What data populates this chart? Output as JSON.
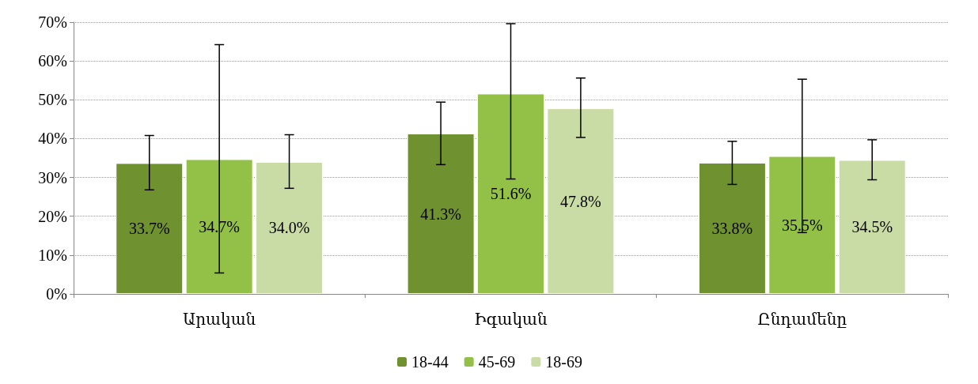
{
  "chart_data": {
    "type": "bar",
    "categories": [
      "Արական",
      "Իգական",
      "Ընդամենը"
    ],
    "series": [
      {
        "name": "18-44",
        "color": "#6f9130",
        "values": [
          33.7,
          41.3,
          33.8
        ],
        "value_labels": [
          "33.7%",
          "41.3%",
          "33.8%"
        ],
        "errors": [
          [
            26.8,
            40.8
          ],
          [
            33.3,
            49.4
          ],
          [
            28.2,
            39.3
          ]
        ]
      },
      {
        "name": "45-69",
        "color": "#93c047",
        "values": [
          34.7,
          51.6,
          35.5
        ],
        "value_labels": [
          "34.7%",
          "51.6%",
          "35.5%"
        ],
        "errors": [
          [
            5.4,
            64.2
          ],
          [
            29.6,
            69.6
          ],
          [
            15.8,
            55.3
          ]
        ]
      },
      {
        "name": "18-69",
        "color": "#cadca6",
        "values": [
          34.0,
          47.8,
          34.5
        ],
        "value_labels": [
          "34.0%",
          "47.8%",
          "34.5%"
        ],
        "errors": [
          [
            27.2,
            41.0
          ],
          [
            40.3,
            55.6
          ],
          [
            29.4,
            39.7
          ]
        ]
      }
    ],
    "ylim": [
      0,
      70
    ],
    "yticks": [
      {
        "value": 0,
        "label": "0%"
      },
      {
        "value": 10,
        "label": "10%"
      },
      {
        "value": 20,
        "label": "20%"
      },
      {
        "value": 30,
        "label": "30%"
      },
      {
        "value": 40,
        "label": "40%"
      },
      {
        "value": 50,
        "label": "50%"
      },
      {
        "value": 60,
        "label": "60%"
      },
      {
        "value": 70,
        "label": "70%"
      }
    ],
    "grid": "y",
    "legend": "bottom"
  }
}
